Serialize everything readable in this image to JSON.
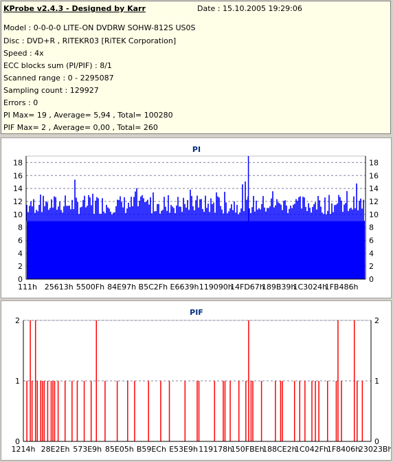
{
  "header": {
    "title": "KProbe v2.4.3 - Designed by Karr",
    "date": "Date : 15.10.2005 19:29:06",
    "lines": [
      "Model : 0-0-0-0 LITE-ON DVDRW SOHW-812S  US0S",
      "Disc : DVD+R , RITEKR03 [RiTEK Corporation]",
      "Speed : 4x",
      "ECC blocks sum (PI/PIF) : 8/1",
      "Scanned range : 0 - 2295087",
      "Sampling count : 129927",
      "Errors : 0",
      "PI Max= 19 , Average= 5,94 , Total= 100280",
      "PIF Max= 2 , Average= 0,00 , Total= 260"
    ]
  },
  "chart_data": [
    {
      "type": "bar",
      "title": "PI",
      "ylim": [
        0,
        19
      ],
      "yticks": [
        0,
        2,
        4,
        6,
        8,
        10,
        12,
        14,
        16,
        18
      ],
      "xticks": [
        "111h",
        "25613h",
        "5500Fh",
        "84E97h",
        "B5C2Fh",
        "E6639h",
        "119090h",
        "14FD67h",
        "189B39h",
        "1C3024h",
        "1FB486h"
      ],
      "grid": true,
      "color": "#0000ff",
      "base_level": 9,
      "max": 19,
      "average": 5.94,
      "total": 100280
    },
    {
      "type": "bar",
      "title": "PIF",
      "ylim": [
        0,
        2
      ],
      "yticks": [
        0,
        1,
        2
      ],
      "xticks": [
        "1214h",
        "28E2Eh",
        "573E9h",
        "85E05h",
        "B59ECh",
        "E53E9h",
        "119178h",
        "150FBEh",
        "188CE2h",
        "1C042Fh",
        "1F8406h",
        "23023Bh"
      ],
      "grid": true,
      "color": "#ff0000",
      "spikes_level2": [
        0.02,
        0.035,
        0.21,
        0.648,
        0.905,
        0.952
      ],
      "spikes_level1": [
        0.01,
        0.025,
        0.04,
        0.05,
        0.055,
        0.06,
        0.07,
        0.08,
        0.085,
        0.09,
        0.1,
        0.12,
        0.14,
        0.155,
        0.175,
        0.195,
        0.235,
        0.27,
        0.3,
        0.32,
        0.36,
        0.395,
        0.42,
        0.465,
        0.5,
        0.505,
        0.55,
        0.575,
        0.58,
        0.595,
        0.62,
        0.64,
        0.655,
        0.66,
        0.685,
        0.725,
        0.74,
        0.745,
        0.78,
        0.795,
        0.81,
        0.83,
        0.84,
        0.85,
        0.875,
        0.9,
        0.915,
        0.96,
        0.975
      ],
      "max": 2,
      "total": 260
    }
  ]
}
